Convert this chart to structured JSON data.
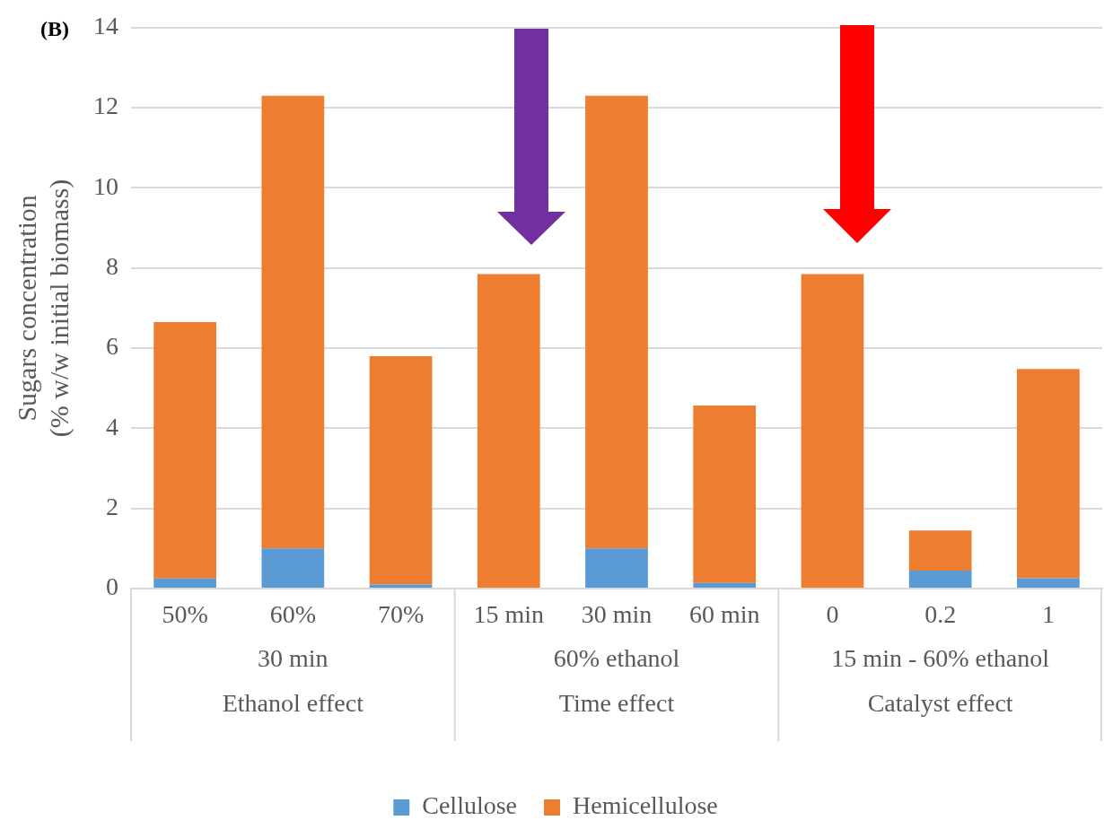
{
  "chart_data": {
    "type": "bar",
    "title": "(B)",
    "ylabel": "Sugars concentration\n(% w/w initial biomass)",
    "categories": [
      "50%",
      "60%",
      "70%",
      "15 min",
      "30 min",
      "60 min",
      "0",
      "0.2",
      "1"
    ],
    "annotations": [
      "30 min",
      "60% ethanol",
      "15 min - 60% ethanol",
      "Ethanol effect",
      "Time effect",
      "Catalyst effect"
    ],
    "stacked": true,
    "series": [
      {
        "name": "Cellulose",
        "color": "#5b9bd5",
        "values": [
          0.25,
          1.0,
          0.1,
          0,
          1.0,
          0.14,
          0,
          0.45,
          0.26
        ]
      },
      {
        "name": "Hemicellulose",
        "color": "#ed7d31",
        "values": [
          6.4,
          11.3,
          5.7,
          7.85,
          11.3,
          4.43,
          7.85,
          1.0,
          5.22
        ]
      }
    ],
    "ylim": [
      0,
      14
    ],
    "yticks": [
      0,
      2,
      4,
      6,
      8,
      10,
      12,
      14
    ],
    "grid": "y",
    "legend": "bottom"
  }
}
